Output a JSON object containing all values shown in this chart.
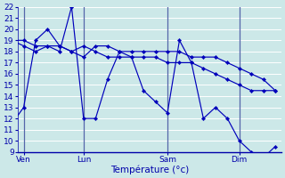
{
  "background_color": "#cce8e8",
  "grid_color": "#ffffff",
  "line_color": "#0000bb",
  "vline_color": "#5566aa",
  "axis_color": "#0000aa",
  "xlabel": "Température (°c)",
  "ylim": [
    9,
    22
  ],
  "yticks": [
    9,
    10,
    11,
    12,
    13,
    14,
    15,
    16,
    17,
    18,
    19,
    20,
    21,
    22
  ],
  "day_labels": [
    "Ven",
    "Lun",
    "Sam",
    "Dim"
  ],
  "day_positions": [
    1,
    6,
    13,
    19
  ],
  "vline_positions": [
    1,
    6,
    13,
    19
  ],
  "n_points": 23,
  "series1": [
    11.5,
    13.0,
    19.0,
    20.0,
    18.5,
    18.0,
    17.5,
    18.5,
    18.5,
    18.0,
    18.0,
    18.0,
    18.0,
    18.0,
    18.0,
    17.5,
    17.5,
    17.5,
    17.0,
    16.5,
    16.0,
    15.5,
    14.5
  ],
  "series2": [
    19.0,
    19.0,
    18.5,
    18.5,
    18.0,
    22.0,
    12.0,
    12.0,
    15.5,
    18.0,
    17.5,
    14.5,
    13.5,
    12.5,
    19.0,
    17.0,
    12.0,
    13.0,
    12.0,
    10.0,
    9.0,
    8.5,
    9.5
  ],
  "series3": [
    19.0,
    18.5,
    18.0,
    18.5,
    18.5,
    18.0,
    18.5,
    18.0,
    17.5,
    17.5,
    17.5,
    17.5,
    17.5,
    17.0,
    17.0,
    17.0,
    16.5,
    16.0,
    15.5,
    15.0,
    14.5,
    14.5,
    14.5
  ]
}
